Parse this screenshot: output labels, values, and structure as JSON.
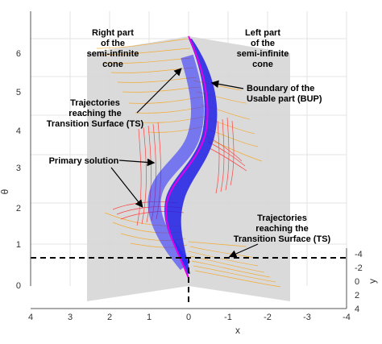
{
  "chart_data": {
    "type": "3d-trajectory-plot",
    "xlabel": "x",
    "ylabel": "y",
    "zlabel": "θ",
    "x_ticks": [
      "4",
      "3",
      "2",
      "1",
      "0",
      "-1",
      "-2",
      "-3",
      "-4"
    ],
    "y_ticks": [
      "-4",
      "-2",
      "0",
      "2",
      "4"
    ],
    "z_ticks": [
      "0",
      "1",
      "2",
      "3",
      "4",
      "5",
      "6"
    ],
    "xlim": [
      4,
      -4
    ],
    "ylim": [
      -4,
      4
    ],
    "zlim": [
      0,
      6.5
    ],
    "grid": true,
    "colors": {
      "cone_plane": "#d6d6d6",
      "ts_trajectories": "#f5a623",
      "primary_solution": "#1f1fe6",
      "boundary_bup": "#e600e6",
      "red_trajectories": "#ff2a2a",
      "dashed_line": "#000000"
    }
  },
  "annotations": {
    "right_part": [
      "Right part",
      "of the",
      "semi-infinite",
      "cone"
    ],
    "left_part": [
      "Left part",
      "of the",
      "semi-infinite",
      "cone"
    ],
    "bup": [
      "Boundary of the",
      "Usable part (BUP)"
    ],
    "ts_upper": [
      "Trajectories",
      "reaching the",
      "Transition Surface (TS)"
    ],
    "primary": [
      "Primary solution"
    ],
    "ts_lower": [
      "Trajectories",
      "reaching the",
      "Transition Surface (TS)"
    ]
  }
}
